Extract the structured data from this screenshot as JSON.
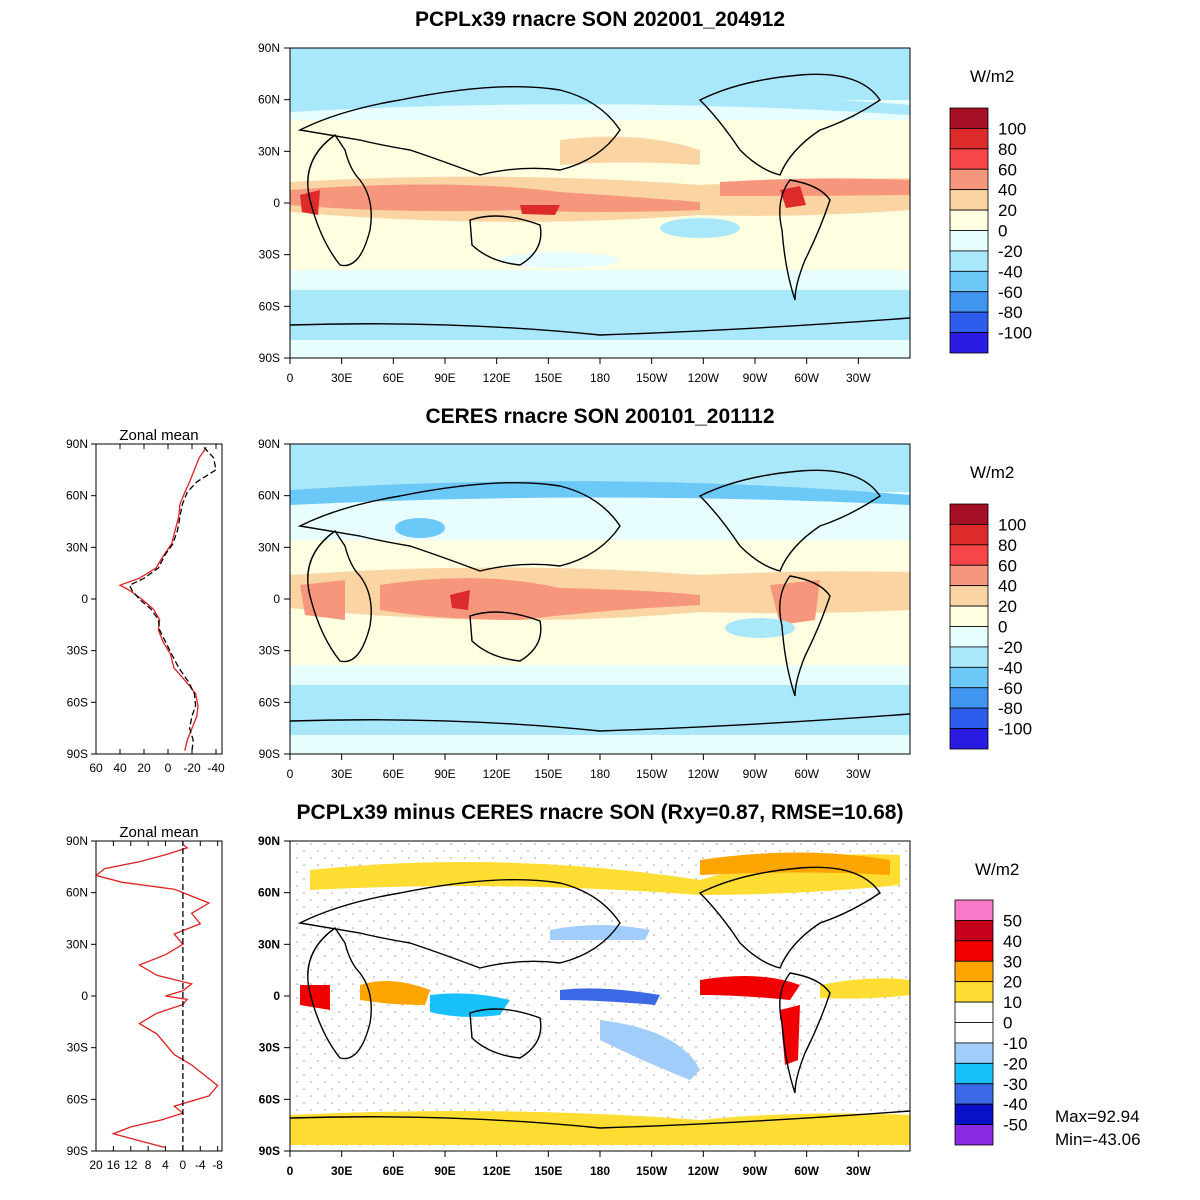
{
  "panels": [
    {
      "id": "model",
      "title": "PCPLx39 rnacre SON 202001_204912",
      "colorbar": {
        "unit": "W/m2",
        "labels": [
          "100",
          "80",
          "60",
          "40",
          "20",
          "0",
          "-20",
          "-40",
          "-60",
          "-80",
          "-100"
        ],
        "colors": [
          "#a50f26",
          "#dd2a2a",
          "#f5464a",
          "#f6977d",
          "#fbd4a3",
          "#fefee0",
          "#e7fdfe",
          "#a9e8fb",
          "#6cc8f7",
          "#3f95f0",
          "#2e5ced",
          "#2a1be3"
        ]
      }
    },
    {
      "id": "obs",
      "title": "CERES rnacre SON 200101_201112",
      "colorbar": {
        "unit": "W/m2",
        "labels": [
          "100",
          "80",
          "60",
          "40",
          "20",
          "0",
          "-20",
          "-40",
          "-60",
          "-80",
          "-100"
        ],
        "colors": [
          "#a50f26",
          "#dd2a2a",
          "#f5464a",
          "#f6977d",
          "#fbd4a3",
          "#fefee0",
          "#e7fdfe",
          "#a9e8fb",
          "#6cc8f7",
          "#3f95f0",
          "#2e5ced",
          "#2a1be3"
        ]
      },
      "zonal_mean": {
        "title": "Zonal mean",
        "x_ticks": [
          "60",
          "40",
          "20",
          "0",
          "-20",
          "-40"
        ],
        "chart_data": {
          "type": "line",
          "xlim": [
            60,
            -45
          ],
          "ylim": [
            -90,
            90
          ],
          "series": [
            {
              "color": "#e02020",
              "style": "solid",
              "lat": [
                -88,
                -82,
                -75,
                -68,
                -62,
                -55,
                -48,
                -40,
                -32,
                -25,
                -18,
                -12,
                -6,
                0,
                5,
                8,
                12,
                18,
                25,
                32,
                40,
                48,
                55,
                62,
                68,
                75,
                82,
                88
              ],
              "value": [
                -14,
                -16,
                -20,
                -24,
                -25,
                -23,
                -15,
                -5,
                -2,
                4,
                8,
                7,
                12,
                22,
                32,
                40,
                24,
                10,
                4,
                -3,
                -6,
                -9,
                -10,
                -14,
                -18,
                -22,
                -26,
                -32
              ]
            },
            {
              "color": "#000000",
              "style": "dashed",
              "lat": [
                -88,
                -82,
                -75,
                -68,
                -62,
                -55,
                -48,
                -40,
                -32,
                -25,
                -18,
                -12,
                -6,
                0,
                5,
                8,
                12,
                18,
                25,
                32,
                40,
                48,
                55,
                62,
                68,
                75,
                82,
                88
              ],
              "value": [
                -20,
                -21,
                -18,
                -20,
                -23,
                -22,
                -17,
                -9,
                -3,
                2,
                7,
                8,
                14,
                24,
                30,
                32,
                20,
                8,
                3,
                -4,
                -8,
                -10,
                -12,
                -16,
                -24,
                -40,
                -38,
                -30
              ]
            }
          ]
        }
      }
    },
    {
      "id": "diff",
      "title": "PCPLx39 minus CERES rnacre SON (Rxy=0.87, RMSE=10.68)",
      "colorbar": {
        "unit": "W/m2",
        "labels": [
          "50",
          "40",
          "30",
          "20",
          "10",
          "0",
          "-10",
          "-20",
          "-30",
          "-40",
          "-50"
        ],
        "colors": [
          "#f978c8",
          "#c6001b",
          "#f00000",
          "#ffa500",
          "#ffdd33",
          "#ffffff",
          "#ffffff",
          "#a0cdfa",
          "#18c0fc",
          "#3c68e6",
          "#0a10c8",
          "#8a2be2"
        ]
      },
      "max_label": "Max=92.94",
      "min_label": "Min=-43.06",
      "zonal_mean": {
        "title": "Zonal mean",
        "x_ticks": [
          "20",
          "16",
          "12",
          "8",
          "4",
          "0",
          "-4",
          "-8"
        ],
        "chart_data": {
          "type": "line",
          "xlim": [
            20,
            -9
          ],
          "ylim": [
            -90,
            90
          ],
          "series": [
            {
              "color": "#e02020",
              "style": "solid",
              "lat": [
                -88,
                -84,
                -80,
                -76,
                -72,
                -68,
                -64,
                -58,
                -52,
                -46,
                -40,
                -34,
                -28,
                -22,
                -16,
                -10,
                -5,
                -2,
                0,
                3,
                7,
                12,
                18,
                24,
                30,
                36,
                42,
                48,
                54,
                58,
                62,
                66,
                70,
                74,
                78,
                82,
                86,
                88
              ],
              "value": [
                4,
                10,
                16,
                12,
                5,
                0,
                2,
                -6,
                -8,
                -5,
                -2,
                2,
                4,
                6,
                10,
                6,
                0,
                -1,
                4,
                0,
                -2,
                6,
                10,
                4,
                0,
                2,
                -4,
                -2,
                -6,
                -2,
                2,
                14,
                20,
                18,
                10,
                4,
                -1,
                0
              ]
            },
            {
              "color": "#000000",
              "style": "dashed",
              "lat": [
                -90,
                90
              ],
              "value": [
                0,
                0
              ]
            }
          ]
        }
      }
    }
  ],
  "map_axes": {
    "lat_ticks": [
      "90N",
      "60N",
      "30N",
      "0",
      "30S",
      "60S",
      "90S"
    ],
    "lon_ticks": [
      "0",
      "30E",
      "60E",
      "90E",
      "120E",
      "150E",
      "180",
      "150W",
      "120W",
      "90W",
      "60W",
      "30W"
    ]
  }
}
